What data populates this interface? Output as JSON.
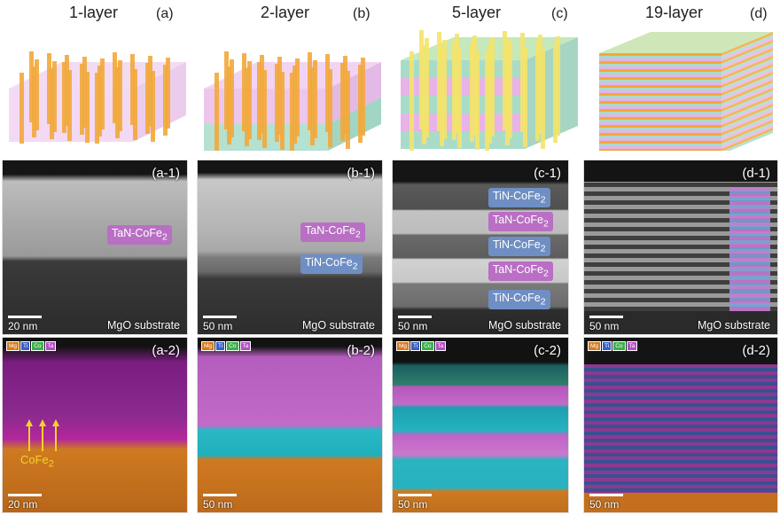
{
  "columns": [
    {
      "title": "1-layer",
      "letter": "(a)"
    },
    {
      "title": "2-layer",
      "letter": "(b)"
    },
    {
      "title": "5-layer",
      "letter": "(c)"
    },
    {
      "title": "19-layer",
      "letter": "(d)"
    }
  ],
  "tem": [
    {
      "label": "(a-1)",
      "scale": "20 nm",
      "substrate": "MgO substrate",
      "tags": [
        "TaN-CoFe2"
      ]
    },
    {
      "label": "(b-1)",
      "scale": "50 nm",
      "substrate": "MgO substrate",
      "tags": [
        "TaN-CoFe2",
        "TiN-CoFe2"
      ]
    },
    {
      "label": "(c-1)",
      "scale": "50 nm",
      "substrate": "MgO substrate",
      "tags": [
        "TiN-CoFe2",
        "TaN-CoFe2",
        "TiN-CoFe2",
        "TaN-CoFe2",
        "TiN-CoFe2"
      ]
    },
    {
      "label": "(d-1)",
      "scale": "50 nm",
      "substrate": "MgO substrate",
      "tags": []
    }
  ],
  "eds": [
    {
      "label": "(a-2)",
      "scale": "20 nm",
      "annotation": "CoFe2"
    },
    {
      "label": "(b-2)",
      "scale": "50 nm"
    },
    {
      "label": "(c-2)",
      "scale": "50 nm"
    },
    {
      "label": "(d-2)",
      "scale": "50 nm"
    }
  ],
  "legend": [
    "Mg",
    "Ti",
    "Co",
    "Ta"
  ],
  "colors": {
    "tan": "#e7b3e8",
    "tin": "#a8dcc9",
    "pillar": "#f2a93b",
    "pillar_top": "#f4e36a"
  }
}
